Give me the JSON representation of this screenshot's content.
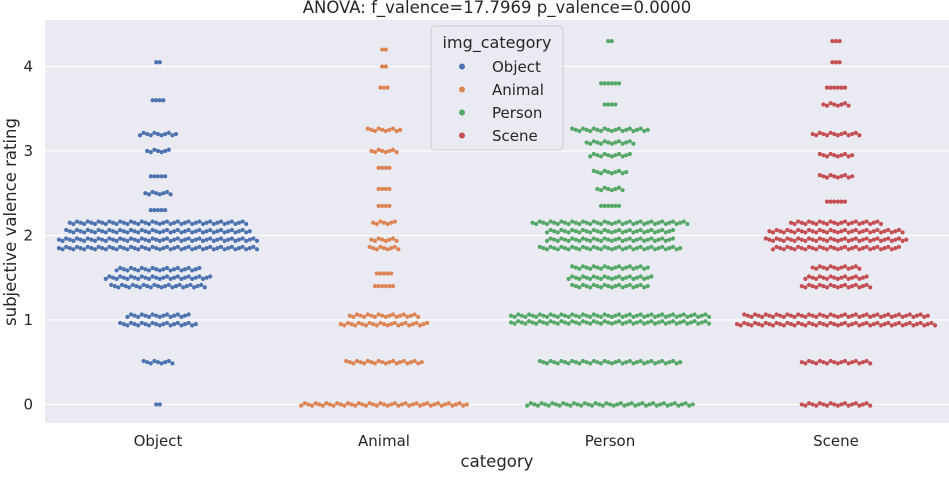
{
  "chart_data": {
    "type": "scatter",
    "subtype": "swarm",
    "title": "ANOVA: f_valence=17.7969 p_valence=0.0000",
    "xlabel": "category",
    "ylabel": "subjective valence rating",
    "categories": [
      "Object",
      "Animal",
      "Person",
      "Scene"
    ],
    "yticks": [
      "0",
      "1",
      "2",
      "3",
      "4"
    ],
    "ylim": [
      -0.22,
      4.55
    ],
    "grid": true,
    "legend": {
      "title": "img_category",
      "placement": "top-center",
      "entries": [
        "Object",
        "Animal",
        "Person",
        "Scene"
      ]
    },
    "series": [
      {
        "name": "Object",
        "color": "#4c72b0",
        "values": [
          {
            "y": 0.0,
            "n": 2
          },
          {
            "y": 0.5,
            "n": 9
          },
          {
            "y": 0.95,
            "n": 22
          },
          {
            "y": 1.05,
            "n": 18
          },
          {
            "y": 1.4,
            "n": 27
          },
          {
            "y": 1.5,
            "n": 30
          },
          {
            "y": 1.6,
            "n": 24
          },
          {
            "y": 1.85,
            "n": 56
          },
          {
            "y": 1.95,
            "n": 56
          },
          {
            "y": 2.05,
            "n": 52
          },
          {
            "y": 2.15,
            "n": 50
          },
          {
            "y": 2.3,
            "n": 5
          },
          {
            "y": 2.5,
            "n": 8
          },
          {
            "y": 2.7,
            "n": 5
          },
          {
            "y": 3.0,
            "n": 7
          },
          {
            "y": 3.2,
            "n": 11
          },
          {
            "y": 3.6,
            "n": 4
          },
          {
            "y": 4.05,
            "n": 2
          }
        ]
      },
      {
        "name": "Animal",
        "color": "#dd8452",
        "values": [
          {
            "y": 0.0,
            "n": 47
          },
          {
            "y": 0.5,
            "n": 22
          },
          {
            "y": 0.95,
            "n": 25
          },
          {
            "y": 1.05,
            "n": 20
          },
          {
            "y": 1.4,
            "n": 6
          },
          {
            "y": 1.55,
            "n": 5
          },
          {
            "y": 1.85,
            "n": 9
          },
          {
            "y": 1.95,
            "n": 8
          },
          {
            "y": 2.15,
            "n": 7
          },
          {
            "y": 2.35,
            "n": 4
          },
          {
            "y": 2.55,
            "n": 4
          },
          {
            "y": 2.8,
            "n": 4
          },
          {
            "y": 3.0,
            "n": 8
          },
          {
            "y": 3.25,
            "n": 10
          },
          {
            "y": 3.75,
            "n": 3
          },
          {
            "y": 4.0,
            "n": 2
          },
          {
            "y": 4.2,
            "n": 2
          }
        ]
      },
      {
        "name": "Person",
        "color": "#55a868",
        "values": [
          {
            "y": 0.0,
            "n": 47
          },
          {
            "y": 0.5,
            "n": 40
          },
          {
            "y": 0.97,
            "n": 56
          },
          {
            "y": 1.05,
            "n": 56
          },
          {
            "y": 1.4,
            "n": 22
          },
          {
            "y": 1.5,
            "n": 24
          },
          {
            "y": 1.62,
            "n": 22
          },
          {
            "y": 1.85,
            "n": 40
          },
          {
            "y": 1.95,
            "n": 36
          },
          {
            "y": 2.05,
            "n": 36
          },
          {
            "y": 2.15,
            "n": 44
          },
          {
            "y": 2.35,
            "n": 6
          },
          {
            "y": 2.55,
            "n": 8
          },
          {
            "y": 2.75,
            "n": 10
          },
          {
            "y": 2.95,
            "n": 12
          },
          {
            "y": 3.1,
            "n": 14
          },
          {
            "y": 3.25,
            "n": 22
          },
          {
            "y": 3.55,
            "n": 4
          },
          {
            "y": 3.8,
            "n": 6
          },
          {
            "y": 4.3,
            "n": 2
          }
        ]
      },
      {
        "name": "Scene",
        "color": "#c44e52",
        "values": [
          {
            "y": 0.0,
            "n": 20
          },
          {
            "y": 0.5,
            "n": 20
          },
          {
            "y": 0.95,
            "n": 56
          },
          {
            "y": 1.05,
            "n": 52
          },
          {
            "y": 1.4,
            "n": 20
          },
          {
            "y": 1.5,
            "n": 18
          },
          {
            "y": 1.62,
            "n": 14
          },
          {
            "y": 1.85,
            "n": 36
          },
          {
            "y": 1.95,
            "n": 40
          },
          {
            "y": 2.05,
            "n": 38
          },
          {
            "y": 2.15,
            "n": 26
          },
          {
            "y": 2.4,
            "n": 6
          },
          {
            "y": 2.7,
            "n": 10
          },
          {
            "y": 2.95,
            "n": 10
          },
          {
            "y": 3.2,
            "n": 14
          },
          {
            "y": 3.55,
            "n": 8
          },
          {
            "y": 3.75,
            "n": 6
          },
          {
            "y": 4.05,
            "n": 3
          },
          {
            "y": 4.3,
            "n": 3
          }
        ]
      }
    ]
  }
}
